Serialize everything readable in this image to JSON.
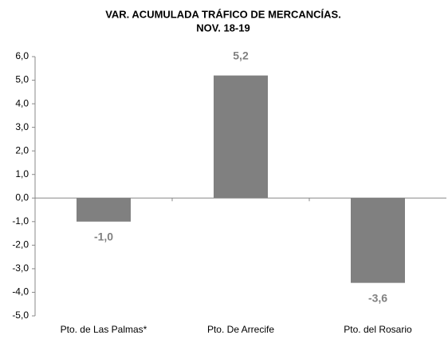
{
  "chart_data": {
    "type": "bar",
    "title": [
      "VAR. ACUMULADA TRÁFICO DE MERCANCÍAS.",
      "NOV. 18-19"
    ],
    "categories": [
      "Pto. de Las Palmas*",
      "Pto. De Arrecife",
      "Pto. del Rosario"
    ],
    "values": [
      -1.0,
      5.2,
      -3.6
    ],
    "value_labels": [
      "-1,0",
      "5,2",
      "-3,6"
    ],
    "color": "#808080",
    "ylim": [
      -5,
      6
    ],
    "yticks": [
      {
        "value": 6,
        "label": "6,0"
      },
      {
        "value": 5,
        "label": "5,0"
      },
      {
        "value": 4,
        "label": "4,0"
      },
      {
        "value": 3,
        "label": "3,0"
      },
      {
        "value": 2,
        "label": "2,0"
      },
      {
        "value": 1,
        "label": "1,0"
      },
      {
        "value": 0,
        "label": "0,0"
      },
      {
        "value": -1,
        "label": "-1,0"
      },
      {
        "value": -2,
        "label": "-2,0"
      },
      {
        "value": -3,
        "label": "-3,0"
      },
      {
        "value": -4,
        "label": "-4,0"
      },
      {
        "value": -5,
        "label": "-5,0"
      }
    ],
    "grid": false
  }
}
